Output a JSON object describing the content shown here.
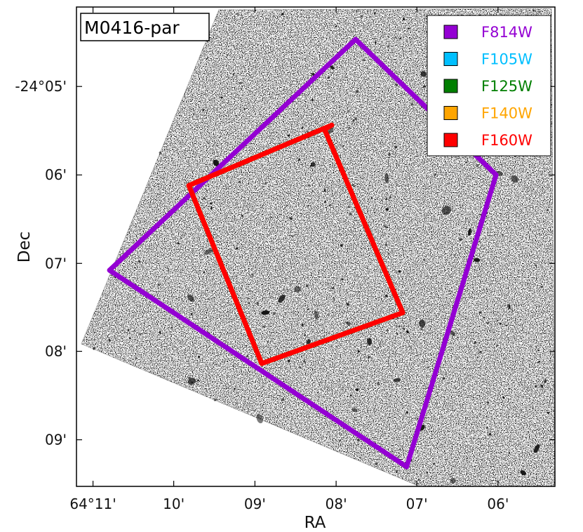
{
  "chart_data": {
    "type": "scatter",
    "title": "M0416-par",
    "xlabel": "RA",
    "ylabel": "Dec",
    "x_ticks": [
      {
        "value": 64.1833,
        "label": "64°11'"
      },
      {
        "value": 64.1667,
        "label": "10'"
      },
      {
        "value": 64.15,
        "label": "09'"
      },
      {
        "value": 64.1333,
        "label": "08'"
      },
      {
        "value": 64.1167,
        "label": "07'"
      },
      {
        "value": 64.1,
        "label": "06'"
      }
    ],
    "y_ticks": [
      {
        "value": -24.0833,
        "label": "-24°05'"
      },
      {
        "value": -24.1,
        "label": "06'"
      },
      {
        "value": -24.1167,
        "label": "07'"
      },
      {
        "value": -24.1333,
        "label": "08'"
      },
      {
        "value": -24.15,
        "label": "09'"
      }
    ],
    "xlim": [
      64.1867,
      64.0883
    ],
    "ylim": [
      -24.1588,
      -24.0683
    ],
    "legend_position": "top-right",
    "series": [
      {
        "name": "F814W",
        "color": "#9400D3",
        "x": [
          64.1293,
          64.1004,
          64.1188,
          64.1799,
          64.1293
        ],
        "y": [
          -24.0744,
          -24.1,
          -24.1551,
          -24.118,
          -24.0744
        ]
      },
      {
        "name": "F105W",
        "color": "#00BFFF",
        "x": [
          64.1342,
          64.1357,
          64.1196,
          64.1486,
          64.1636,
          64.1342
        ],
        "y": [
          -24.0906,
          -24.0914,
          -24.126,
          -24.1356,
          -24.102,
          -24.0906
        ]
      },
      {
        "name": "F125W",
        "color": "#007F00",
        "x": [
          64.1342,
          64.1357,
          64.1196,
          64.1486,
          64.1636,
          64.1342
        ],
        "y": [
          -24.0906,
          -24.0914,
          -24.126,
          -24.1356,
          -24.102,
          -24.0906
        ]
      },
      {
        "name": "F140W",
        "color": "#FFA500",
        "x": [
          64.1342,
          64.1357,
          64.1196,
          64.1486,
          64.1636,
          64.1342
        ],
        "y": [
          -24.0906,
          -24.0914,
          -24.126,
          -24.1356,
          -24.102,
          -24.0906
        ]
      },
      {
        "name": "F160W",
        "color": "#FF0000",
        "x": [
          64.1342,
          64.1357,
          64.1196,
          64.1486,
          64.1636,
          64.1342
        ],
        "y": [
          -24.0906,
          -24.0914,
          -24.126,
          -24.1356,
          -24.102,
          -24.0906
        ]
      }
    ]
  }
}
